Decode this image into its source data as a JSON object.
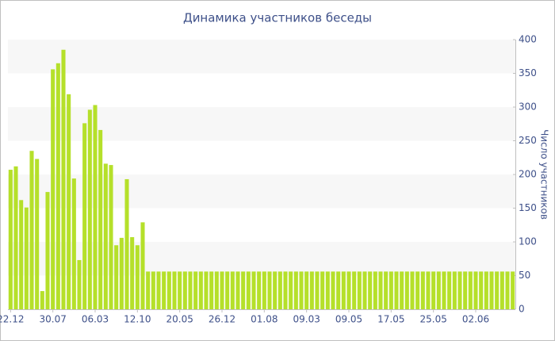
{
  "chart_data": {
    "type": "bar",
    "title": "Динамика участников беседы",
    "y_axis_label": "Число участников",
    "categories": [
      "22.12",
      null,
      null,
      null,
      null,
      null,
      null,
      null,
      "30.07",
      null,
      null,
      null,
      null,
      null,
      null,
      null,
      "06.03",
      null,
      null,
      null,
      null,
      null,
      null,
      null,
      "12.10",
      null,
      null,
      null,
      null,
      null,
      null,
      null,
      "20.05",
      null,
      null,
      null,
      null,
      null,
      null,
      null,
      "26.12",
      null,
      null,
      null,
      null,
      null,
      null,
      null,
      "01.08",
      null,
      null,
      null,
      null,
      null,
      null,
      null,
      "09.03",
      null,
      null,
      null,
      null,
      null,
      null,
      null,
      "09.05",
      null,
      null,
      null,
      null,
      null,
      null,
      null,
      "17.05",
      null,
      null,
      null,
      null,
      null,
      null,
      null,
      "25.05",
      null,
      null,
      null,
      null,
      null,
      null,
      null,
      "02.06",
      null,
      null,
      null,
      null,
      null,
      null,
      null
    ],
    "values": [
      207,
      212,
      162,
      151,
      235,
      223,
      27,
      174,
      356,
      365,
      385,
      319,
      194,
      73,
      276,
      296,
      303,
      266,
      216,
      214,
      95,
      106,
      193,
      107,
      95,
      129,
      56,
      56,
      56,
      56,
      56,
      56,
      56,
      56,
      56,
      56,
      56,
      56,
      56,
      56,
      56,
      56,
      56,
      56,
      56,
      56,
      56,
      56,
      56,
      56,
      56,
      56,
      56,
      56,
      56,
      56,
      56,
      56,
      56,
      56,
      56,
      56,
      56,
      56,
      56,
      56,
      56,
      56,
      56,
      56,
      56,
      56,
      56,
      56,
      56,
      56,
      56,
      56,
      56,
      56,
      56,
      56,
      56,
      56,
      56,
      56,
      56,
      56,
      56,
      56,
      56,
      56,
      56,
      56,
      56,
      56
    ],
    "color": "#b5e02a",
    "ylim": [
      0,
      400
    ],
    "yticks": [
      0,
      50,
      100,
      150,
      200,
      250,
      300,
      350,
      400
    ],
    "y_axis_side": "right",
    "grid": "bands"
  }
}
